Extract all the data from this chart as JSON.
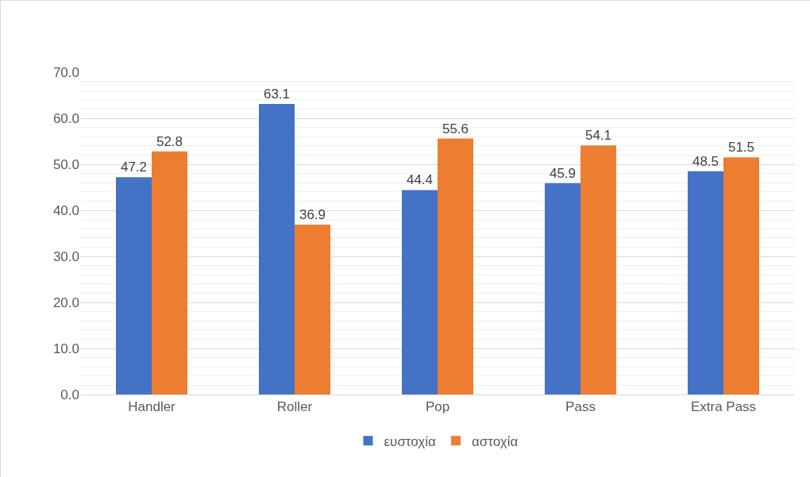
{
  "chart_data": {
    "type": "bar",
    "categories": [
      "Handler",
      "Roller",
      "Pop",
      "Pass",
      "Extra Pass"
    ],
    "series": [
      {
        "name": "ευστοχία",
        "color": "#4472c4",
        "values": [
          47.2,
          63.1,
          44.4,
          45.9,
          48.5
        ]
      },
      {
        "name": "αστοχία",
        "color": "#ed7d31",
        "values": [
          52.8,
          36.9,
          55.6,
          54.1,
          51.5
        ]
      }
    ],
    "ylim": [
      0,
      70
    ],
    "yticks": [
      {
        "value": 0,
        "label": "0.0"
      },
      {
        "value": 10,
        "label": "10.0"
      },
      {
        "value": 20,
        "label": "20.0"
      },
      {
        "value": 30,
        "label": "30.0"
      },
      {
        "value": 40,
        "label": "40.0"
      },
      {
        "value": 50,
        "label": "50.0"
      },
      {
        "value": 60,
        "label": "60.0"
      },
      {
        "value": 70,
        "label": "70.0"
      }
    ],
    "grid": true,
    "legend": "bottom",
    "data_labels": true
  }
}
